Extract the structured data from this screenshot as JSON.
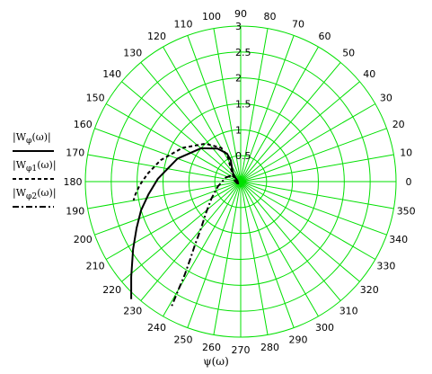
{
  "chart_data": {
    "type": "polar-line",
    "angle_unit": "degrees",
    "angular_ticks": [
      "0",
      "10",
      "20",
      "30",
      "40",
      "50",
      "60",
      "70",
      "80",
      "90",
      "100",
      "110",
      "120",
      "130",
      "140",
      "150",
      "160",
      "170",
      "180",
      "190",
      "200",
      "210",
      "220",
      "230",
      "240",
      "250",
      "260",
      "270",
      "280",
      "290",
      "300",
      "310",
      "320",
      "330",
      "340",
      "350"
    ],
    "radial_ticks": [
      "0.5",
      "1",
      "1.5",
      "2",
      "2.5",
      "3"
    ],
    "rlim": [
      0,
      3
    ],
    "grid": true,
    "grid_color": "#00e000",
    "xlabel": "ψ(ω)",
    "series": [
      {
        "name": "|W_φ(ω)|",
        "legend_main": "|W",
        "legend_sub": "φ",
        "legend_tail": "(ω)|",
        "style": "solid",
        "color": "#000000",
        "points": [
          [
            0.05,
            185
          ],
          [
            0.1,
            150
          ],
          [
            0.2,
            135
          ],
          [
            0.32,
            122
          ],
          [
            0.45,
            115
          ],
          [
            0.6,
            116
          ],
          [
            0.78,
            125
          ],
          [
            1.0,
            140
          ],
          [
            1.3,
            160
          ],
          [
            1.6,
            178
          ],
          [
            1.8,
            188
          ],
          [
            2.0,
            196
          ],
          [
            2.2,
            204
          ],
          [
            2.45,
            212
          ],
          [
            2.8,
            221
          ],
          [
            3.1,
            227
          ]
        ]
      },
      {
        "name": "|W_φ1(ω)|",
        "legend_main": "|W",
        "legend_sub": "φ1",
        "legend_tail": "(ω)|",
        "style": "dashed",
        "color": "#000000",
        "points": [
          [
            0.05,
            200
          ],
          [
            0.1,
            162
          ],
          [
            0.2,
            140
          ],
          [
            0.35,
            125
          ],
          [
            0.55,
            117
          ],
          [
            0.75,
            120
          ],
          [
            1.0,
            133
          ],
          [
            1.3,
            150
          ],
          [
            1.6,
            165
          ],
          [
            1.8,
            175
          ],
          [
            1.95,
            182
          ],
          [
            2.05,
            187
          ],
          [
            2.1,
            190
          ]
        ]
      },
      {
        "name": "|W_φ2(ω)|",
        "legend_main": "|W",
        "legend_sub": "φ2",
        "legend_tail": "(ω)|",
        "style": "dashdot",
        "color": "#000000",
        "points": [
          [
            0.05,
            230
          ],
          [
            0.08,
            200
          ],
          [
            0.12,
            170
          ],
          [
            0.2,
            140
          ],
          [
            0.3,
            165
          ],
          [
            0.45,
            192
          ],
          [
            0.65,
            210
          ],
          [
            0.9,
            222
          ],
          [
            1.2,
            230
          ],
          [
            1.5,
            234
          ],
          [
            1.8,
            237
          ],
          [
            2.1,
            239
          ],
          [
            2.4,
            240
          ],
          [
            2.75,
            241
          ]
        ]
      }
    ]
  }
}
